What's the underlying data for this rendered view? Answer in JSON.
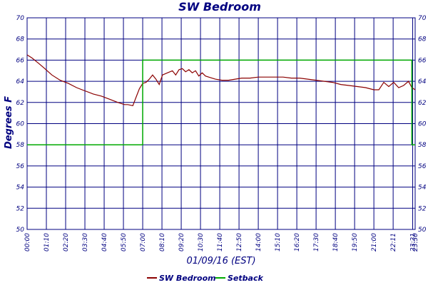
{
  "chart_data": {
    "type": "line",
    "title": "SW Bedroom",
    "xlabel": "01/09/16 (EST)",
    "ylabel": "Degrees F",
    "ylim": [
      50,
      70
    ],
    "y_ticks": [
      "50",
      "52",
      "54",
      "56",
      "58",
      "60",
      "62",
      "64",
      "66",
      "68",
      "70"
    ],
    "x_ticks": [
      "00:00",
      "01:10",
      "02:20",
      "03:30",
      "04:40",
      "05:50",
      "07:00",
      "08:10",
      "09:20",
      "10:30",
      "11:40",
      "12:50",
      "14:00",
      "15:10",
      "16:20",
      "17:30",
      "18:40",
      "19:50",
      "21:00",
      "22:11",
      "23:21",
      "23:30"
    ],
    "grid": true,
    "legend_placement": "bottom",
    "colors": {
      "sw_bedroom": "#8b0000",
      "setback": "#00aa00",
      "grid": "#000080",
      "text": "#000080"
    },
    "series": [
      {
        "name": "SW Bedroom",
        "x_hours": [
          0,
          0.3,
          0.7,
          1.0,
          1.5,
          2.0,
          2.5,
          3.0,
          3.5,
          4.0,
          4.5,
          5.0,
          5.5,
          5.9,
          6.1,
          6.4,
          6.6,
          6.8,
          7.0,
          7.2,
          7.4,
          7.6,
          7.8,
          8.0,
          8.2,
          8.5,
          8.8,
          9.0,
          9.2,
          9.4,
          9.6,
          9.8,
          10.0,
          10.2,
          10.4,
          10.6,
          10.8,
          11.0,
          11.4,
          11.8,
          12.2,
          12.6,
          13.0,
          13.5,
          14.0,
          14.5,
          15.0,
          15.5,
          16.0,
          16.5,
          17.0,
          17.5,
          18.0,
          18.5,
          19.0,
          19.5,
          20.0,
          20.5,
          21.0,
          21.3,
          21.6,
          21.9,
          22.2,
          22.5,
          22.8,
          23.1,
          23.3,
          23.5
        ],
        "values": [
          66.5,
          66.2,
          65.7,
          65.3,
          64.6,
          64.1,
          63.8,
          63.4,
          63.1,
          62.8,
          62.6,
          62.3,
          62.0,
          61.8,
          61.8,
          61.7,
          62.5,
          63.3,
          63.8,
          63.9,
          64.2,
          64.6,
          64.2,
          63.7,
          64.6,
          64.8,
          65.0,
          64.6,
          65.1,
          65.2,
          64.9,
          65.1,
          64.8,
          65.0,
          64.5,
          64.8,
          64.5,
          64.4,
          64.2,
          64.1,
          64.1,
          64.2,
          64.3,
          64.3,
          64.4,
          64.4,
          64.4,
          64.4,
          64.3,
          64.3,
          64.2,
          64.1,
          64.0,
          63.9,
          63.7,
          63.6,
          63.5,
          63.4,
          63.2,
          63.2,
          63.9,
          63.5,
          63.9,
          63.4,
          63.6,
          64.0,
          63.4,
          63.2
        ]
      },
      {
        "name": "Setback",
        "x_hours": [
          0,
          7.0,
          7.0,
          23.3,
          23.3,
          23.5
        ],
        "values": [
          58,
          58,
          66,
          66,
          58,
          58
        ]
      }
    ]
  }
}
